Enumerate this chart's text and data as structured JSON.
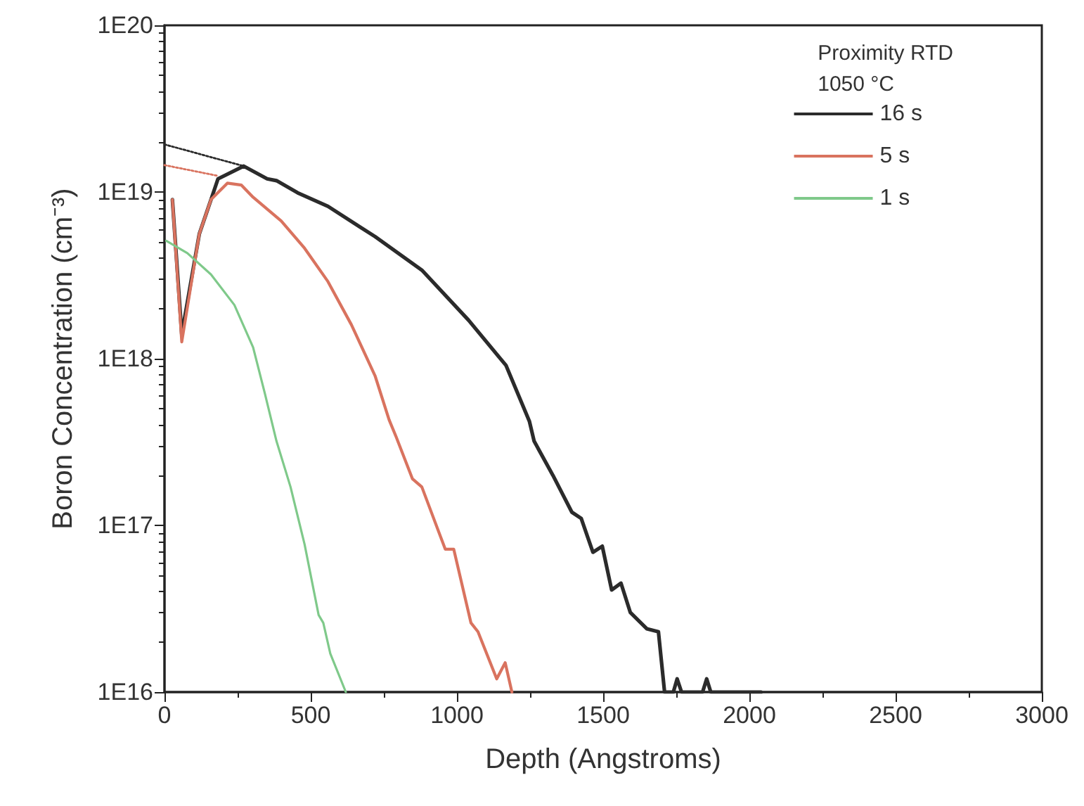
{
  "chart_data": {
    "type": "line",
    "xlabel": "Depth (Angstroms)",
    "ylabel": "Boron Concentration (cm⁻³)",
    "legend_title": "Proximity RTD\n1050 °C",
    "legend": "top right",
    "grid": false,
    "marker": "none",
    "log": "y",
    "xlim": [
      0,
      3000
    ],
    "xticks": [
      0,
      500,
      1000,
      1500,
      2000,
      2500,
      3000
    ],
    "ylim": [
      1e+16,
      1e+20
    ],
    "yticks": [
      {
        "value": 1e+16,
        "label": "1E16"
      },
      {
        "value": 1e+17,
        "label": "1E17"
      },
      {
        "value": 1e+18,
        "label": "1E18"
      },
      {
        "value": 1e+19,
        "label": "1E19"
      },
      {
        "value": 1e+20,
        "label": "1E20"
      }
    ],
    "series": [
      {
        "name": "16 s",
        "color": "#2b2b2b",
        "line_style": "solid",
        "x": [
          27,
          59,
          119,
          159,
          183,
          271,
          351,
          383,
          455,
          559,
          720,
          880,
          1040,
          1168,
          1248,
          1264,
          1328,
          1393,
          1425,
          1465,
          1497,
          1529,
          1561,
          1593,
          1649,
          1689,
          1710,
          1740,
          1753,
          1768,
          1840,
          1854,
          1868,
          2040
        ],
        "values": [
          9e+18,
          1.4e+18,
          5.6e+18,
          9e+18,
          1.2e+19,
          1.43e+19,
          1.2e+19,
          1.17e+19,
          9.9e+18,
          8.2e+18,
          5.4e+18,
          3.4e+18,
          1.7e+18,
          9.1e+17,
          4.2e+17,
          3.2e+17,
          2e+17,
          1.2e+17,
          1.1e+17,
          6.9e+16,
          7.5e+16,
          4.1e+16,
          4.5e+16,
          3e+16,
          2.4e+16,
          2.3e+16,
          1e+16,
          1e+16,
          1.2e+16,
          1e+16,
          1e+16,
          1.2e+16,
          1e+16,
          1e+16
        ]
      },
      {
        "name": "5 s",
        "color": "#d9735f",
        "line_style": "solid",
        "x": [
          27,
          59,
          119,
          159,
          215,
          263,
          303,
          399,
          479,
          559,
          639,
          720,
          768,
          792,
          848,
          880,
          960,
          989,
          1048,
          1072,
          1136,
          1165,
          1188
        ],
        "values": [
          9e+18,
          1.26e+18,
          5.6e+18,
          9e+18,
          1.13e+19,
          1.1e+19,
          9.3e+18,
          6.7e+18,
          4.6e+18,
          2.9e+18,
          1.6e+18,
          7.9e+17,
          4.3e+17,
          3.4e+17,
          1.9e+17,
          1.7e+17,
          7.2e+16,
          7.2e+16,
          2.6e+16,
          2.3e+16,
          1.2e+16,
          1.5e+16,
          1e+16
        ]
      },
      {
        "name": "1 s",
        "color": "#7fc98a",
        "line_style": "solid",
        "x": [
          6,
          78,
          159,
          239,
          303,
          343,
          383,
          431,
          479,
          527,
          543,
          567,
          620
        ],
        "values": [
          5.1e+18,
          4.3e+18,
          3.2e+18,
          2.1e+18,
          1.17e+18,
          6.2e+17,
          3.2e+17,
          1.7e+17,
          7.7e+16,
          2.9e+16,
          2.6e+16,
          1.7e+16,
          1e+16
        ]
      },
      {
        "color": "#2b2b2b",
        "line_style": "dotted",
        "x": [
          0,
          271
        ],
        "values": [
          1.93e+19,
          1.43e+19
        ]
      },
      {
        "color": "#d9735f",
        "line_style": "dotted",
        "x": [
          0,
          183
        ],
        "values": [
          1.45e+19,
          1.25e+19
        ]
      }
    ]
  }
}
